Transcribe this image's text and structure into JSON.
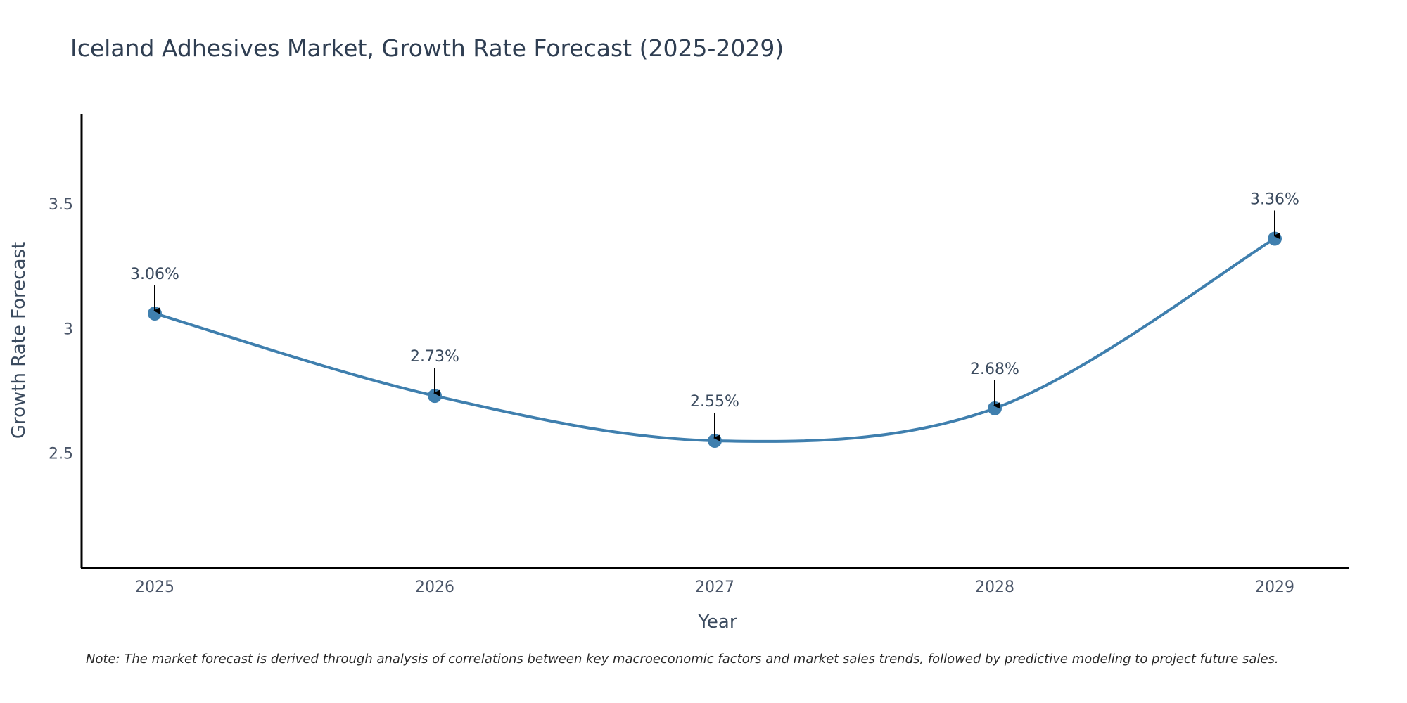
{
  "chart_data": {
    "type": "line",
    "title": "Iceland Adhesives Market, Growth Rate Forecast (2025-2029)",
    "xlabel": "Year",
    "ylabel": "Growth Rate Forecast",
    "categories": [
      "2025",
      "2026",
      "2027",
      "2028",
      "2029"
    ],
    "values": [
      3.06,
      2.73,
      2.55,
      2.68,
      3.36
    ],
    "data_labels": [
      "3.06%",
      "2.73%",
      "2.55%",
      "2.68%",
      "3.36%"
    ],
    "yticks": [
      2.5,
      3,
      3.5
    ],
    "ytick_labels": [
      "2.5",
      "3",
      "3.5"
    ],
    "ylim": [
      2.04,
      3.86
    ],
    "grid": false,
    "line_color": "#3f7fae",
    "marker_color": "#3f7fae",
    "note": "Note: The market forecast is derived through analysis of correlations between key macroeconomic factors and market sales trends, followed by predictive modeling to project future sales."
  }
}
